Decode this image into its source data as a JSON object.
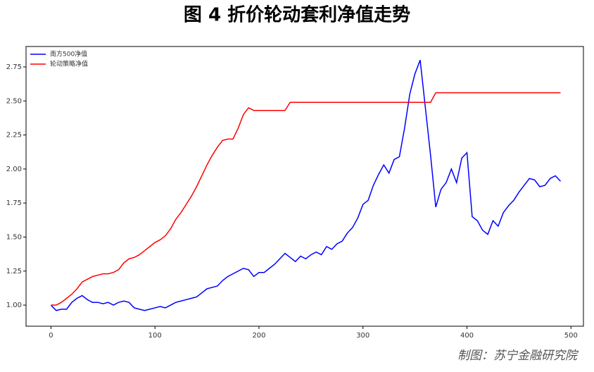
{
  "chart_data": {
    "type": "line",
    "title": "图 4 折价轮动套利净值走势",
    "source": "制图：苏宁金融研究院",
    "x": [
      0,
      5,
      10,
      15,
      20,
      25,
      30,
      35,
      40,
      45,
      50,
      55,
      60,
      65,
      70,
      75,
      80,
      85,
      90,
      95,
      100,
      105,
      110,
      115,
      120,
      125,
      130,
      135,
      140,
      145,
      150,
      155,
      160,
      165,
      170,
      175,
      180,
      185,
      190,
      195,
      200,
      205,
      210,
      215,
      220,
      225,
      230,
      235,
      240,
      245,
      250,
      255,
      260,
      265,
      270,
      275,
      280,
      285,
      290,
      295,
      300,
      305,
      310,
      315,
      320,
      325,
      330,
      335,
      340,
      345,
      350,
      355,
      360,
      365,
      370,
      375,
      380,
      385,
      390,
      395,
      400,
      405,
      410,
      415,
      420,
      425,
      430,
      435,
      440,
      445,
      450,
      455,
      460,
      465,
      470,
      475,
      480,
      485,
      490
    ],
    "series": [
      {
        "name": "南方500净值",
        "color": "#0000ff",
        "values": [
          1.0,
          0.96,
          0.97,
          0.97,
          1.02,
          1.05,
          1.07,
          1.04,
          1.02,
          1.02,
          1.01,
          1.02,
          1.0,
          1.02,
          1.03,
          1.02,
          0.98,
          0.97,
          0.96,
          0.97,
          0.98,
          0.99,
          0.98,
          1.0,
          1.02,
          1.03,
          1.04,
          1.05,
          1.06,
          1.09,
          1.12,
          1.13,
          1.14,
          1.18,
          1.21,
          1.23,
          1.25,
          1.27,
          1.26,
          1.21,
          1.24,
          1.24,
          1.27,
          1.3,
          1.34,
          1.38,
          1.35,
          1.32,
          1.36,
          1.34,
          1.37,
          1.39,
          1.37,
          1.43,
          1.41,
          1.45,
          1.47,
          1.53,
          1.57,
          1.64,
          1.74,
          1.77,
          1.88,
          1.96,
          2.03,
          1.97,
          2.07,
          2.09,
          2.3,
          2.55,
          2.7,
          2.8,
          2.45,
          2.1,
          1.72,
          1.85,
          1.9,
          2.0,
          1.9,
          2.08,
          2.12,
          1.65,
          1.62,
          1.55,
          1.52,
          1.62,
          1.58,
          1.68,
          1.73,
          1.77,
          1.83,
          1.88,
          1.93,
          1.92,
          1.87,
          1.88,
          1.93,
          1.95,
          1.91
        ]
      },
      {
        "name": "轮动策略净值",
        "color": "#ff0000",
        "values": [
          1.0,
          1.0,
          1.02,
          1.05,
          1.08,
          1.12,
          1.17,
          1.19,
          1.21,
          1.22,
          1.23,
          1.23,
          1.24,
          1.26,
          1.31,
          1.34,
          1.35,
          1.37,
          1.4,
          1.43,
          1.46,
          1.48,
          1.51,
          1.56,
          1.63,
          1.68,
          1.74,
          1.8,
          1.87,
          1.95,
          2.03,
          2.1,
          2.16,
          2.21,
          2.22,
          2.22,
          2.3,
          2.4,
          2.45,
          2.43,
          2.43,
          2.43,
          2.43,
          2.43,
          2.43,
          2.43,
          2.49,
          2.49,
          2.49,
          2.49,
          2.49,
          2.49,
          2.49,
          2.49,
          2.49,
          2.49,
          2.49,
          2.49,
          2.49,
          2.49,
          2.49,
          2.49,
          2.49,
          2.49,
          2.49,
          2.49,
          2.49,
          2.49,
          2.49,
          2.49,
          2.49,
          2.49,
          2.49,
          2.49,
          2.56,
          2.56,
          2.56,
          2.56,
          2.56,
          2.56,
          2.56,
          2.56,
          2.56,
          2.56,
          2.56,
          2.56,
          2.56,
          2.56,
          2.56,
          2.56,
          2.56,
          2.56,
          2.56,
          2.56,
          2.56,
          2.56,
          2.56,
          2.56,
          2.56
        ]
      }
    ],
    "xlim": [
      -24,
      512
    ],
    "xticks": [
      0,
      100,
      200,
      300,
      400,
      500
    ],
    "ylim": [
      0.845,
      2.9
    ],
    "yticks": [
      {
        "value": 1.0,
        "label": "1.00"
      },
      {
        "value": 1.25,
        "label": "1.25"
      },
      {
        "value": 1.5,
        "label": "1.50"
      },
      {
        "value": 1.75,
        "label": "1.75"
      },
      {
        "value": 2.0,
        "label": "2.00"
      },
      {
        "value": 2.25,
        "label": "2.25"
      },
      {
        "value": 2.5,
        "label": "2.50"
      },
      {
        "value": 2.75,
        "label": "2.75"
      }
    ],
    "legend": "upper left",
    "grid": false
  }
}
